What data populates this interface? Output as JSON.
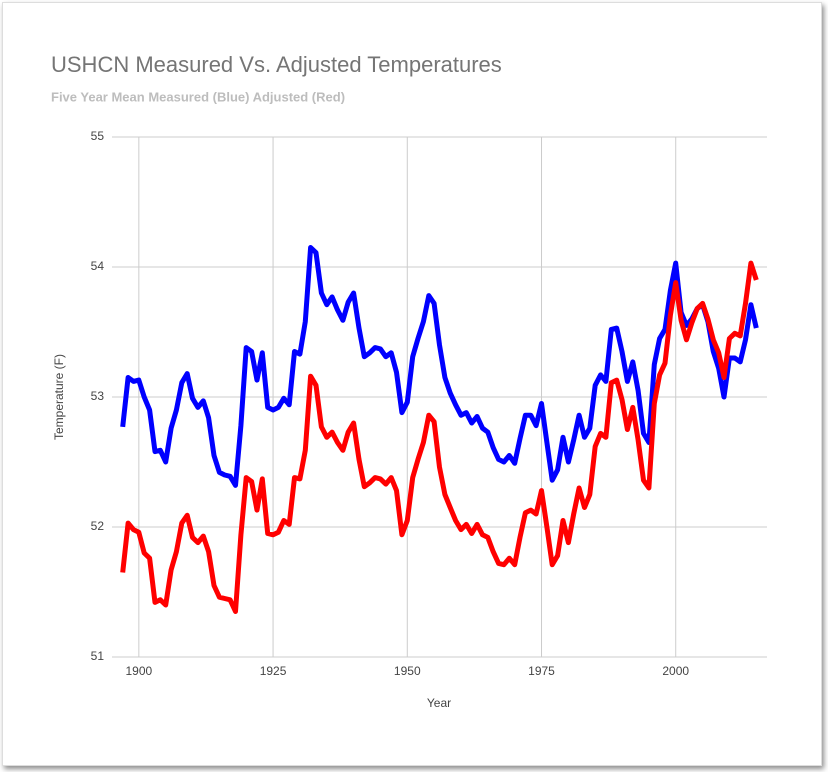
{
  "chart_data": {
    "type": "line",
    "title": "USHCN  Measured Vs. Adjusted Temperatures",
    "subtitle": "Five Year Mean  Measured (Blue) Adjusted (Red)",
    "x_label": "Year",
    "y_label": "Temperature (F)",
    "x": [
      1897,
      1898,
      1899,
      1900,
      1901,
      1902,
      1903,
      1904,
      1905,
      1906,
      1907,
      1908,
      1909,
      1910,
      1911,
      1912,
      1913,
      1914,
      1915,
      1916,
      1917,
      1918,
      1919,
      1920,
      1921,
      1922,
      1923,
      1924,
      1925,
      1926,
      1927,
      1928,
      1929,
      1930,
      1931,
      1932,
      1933,
      1934,
      1935,
      1936,
      1937,
      1938,
      1939,
      1940,
      1941,
      1942,
      1943,
      1944,
      1945,
      1946,
      1947,
      1948,
      1949,
      1950,
      1951,
      1952,
      1953,
      1954,
      1955,
      1956,
      1957,
      1958,
      1959,
      1960,
      1961,
      1962,
      1963,
      1964,
      1965,
      1966,
      1967,
      1968,
      1969,
      1970,
      1971,
      1972,
      1973,
      1974,
      1975,
      1976,
      1977,
      1978,
      1979,
      1980,
      1981,
      1982,
      1983,
      1984,
      1985,
      1986,
      1987,
      1988,
      1989,
      1990,
      1991,
      1992,
      1993,
      1994,
      1995,
      1996,
      1997,
      1998,
      1999,
      2000,
      2001,
      2002,
      2003,
      2004,
      2005,
      2006,
      2007,
      2008,
      2009,
      2010,
      2011,
      2012,
      2013,
      2014,
      2015
    ],
    "series": [
      {
        "color": "#0000ff",
        "values": [
          52.77,
          53.15,
          53.12,
          53.13,
          53.0,
          52.9,
          52.58,
          52.59,
          52.5,
          52.76,
          52.9,
          53.11,
          53.18,
          52.99,
          52.92,
          52.97,
          52.84,
          52.55,
          52.42,
          52.4,
          52.39,
          52.32,
          52.78,
          53.38,
          53.35,
          53.13,
          53.34,
          52.92,
          52.9,
          52.92,
          52.99,
          52.94,
          53.35,
          53.33,
          53.58,
          54.15,
          54.11,
          53.8,
          53.71,
          53.77,
          53.67,
          53.59,
          53.73,
          53.8,
          53.53,
          53.31,
          53.34,
          53.38,
          53.37,
          53.31,
          53.34,
          53.19,
          52.88,
          52.96,
          53.31,
          53.45,
          53.58,
          53.78,
          53.72,
          53.4,
          53.15,
          53.03,
          52.94,
          52.86,
          52.88,
          52.8,
          52.85,
          52.76,
          52.73,
          52.61,
          52.52,
          52.5,
          52.55,
          52.49,
          52.68,
          52.86,
          52.86,
          52.78,
          52.95,
          52.65,
          52.36,
          52.44,
          52.69,
          52.5,
          52.67,
          52.86,
          52.69,
          52.76,
          53.09,
          53.17,
          53.12,
          53.52,
          53.53,
          53.35,
          53.12,
          53.27,
          53.05,
          52.72,
          52.65,
          53.25,
          53.45,
          53.52,
          53.82,
          54.03,
          53.65,
          53.55,
          53.6,
          53.68,
          53.71,
          53.58,
          53.35,
          53.22,
          53.0,
          53.3,
          53.3,
          53.27,
          53.44,
          53.71,
          53.53
        ]
      },
      {
        "color": "#ff0000",
        "values": [
          51.65,
          52.03,
          51.98,
          51.96,
          51.8,
          51.76,
          51.42,
          51.44,
          51.4,
          51.67,
          51.81,
          52.03,
          52.09,
          51.92,
          51.88,
          51.93,
          51.81,
          51.55,
          51.46,
          51.45,
          51.44,
          51.35,
          51.94,
          52.38,
          52.35,
          52.13,
          52.37,
          51.95,
          51.94,
          51.96,
          52.05,
          52.02,
          52.38,
          52.37,
          52.59,
          53.16,
          53.09,
          52.77,
          52.69,
          52.73,
          52.65,
          52.59,
          52.73,
          52.8,
          52.52,
          52.31,
          52.34,
          52.38,
          52.37,
          52.33,
          52.38,
          52.28,
          51.94,
          52.05,
          52.38,
          52.52,
          52.65,
          52.86,
          52.81,
          52.46,
          52.25,
          52.15,
          52.05,
          51.98,
          52.02,
          51.95,
          52.02,
          51.94,
          51.92,
          51.81,
          51.72,
          51.71,
          51.76,
          51.71,
          51.92,
          52.11,
          52.13,
          52.1,
          52.28,
          52.0,
          51.71,
          51.78,
          52.05,
          51.88,
          52.1,
          52.3,
          52.15,
          52.25,
          52.62,
          52.72,
          52.69,
          53.11,
          53.13,
          52.98,
          52.75,
          52.92,
          52.67,
          52.36,
          52.3,
          52.95,
          53.17,
          53.26,
          53.63,
          53.88,
          53.59,
          53.44,
          53.57,
          53.68,
          53.72,
          53.6,
          53.44,
          53.34,
          53.15,
          53.45,
          53.49,
          53.47,
          53.72,
          54.03,
          53.9
        ]
      }
    ],
    "xlim": [
      1895,
      2017
    ],
    "xticks": [
      1900,
      1925,
      1950,
      1975,
      2000
    ],
    "ylim": [
      51,
      55
    ],
    "yticks": [
      51,
      52,
      53,
      54,
      55
    ],
    "grid": true
  }
}
